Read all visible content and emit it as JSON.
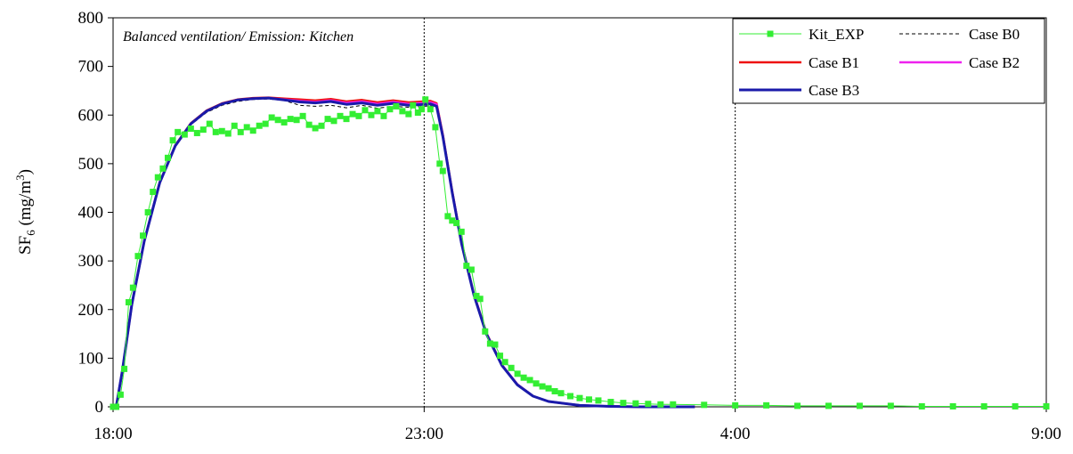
{
  "chart_data": {
    "type": "line",
    "annotation": "Balanced ventilation/ Emission: Kitchen",
    "ylabel": {
      "base": "SF",
      "sub": "6",
      "mid": " (mg/m",
      "sup": "3",
      "end": ")"
    },
    "xlabel": "",
    "xlim": [
      0,
      15
    ],
    "ylim": [
      0,
      800
    ],
    "x_tick_values": [
      0,
      5,
      10,
      15
    ],
    "x_tick_labels": [
      "18:00",
      "23:00",
      "4:00",
      "9:00"
    ],
    "y_ticks": [
      0,
      100,
      200,
      300,
      400,
      500,
      600,
      700,
      800
    ],
    "vertical_reference_lines": [
      5,
      10,
      15
    ],
    "x_unit_note": "hours after 18:00",
    "legend_position": "top-right",
    "series": [
      {
        "name": "Kit_EXP",
        "color": "#33ee33",
        "style": "line-with-square-markers",
        "points": [
          [
            -0.15,
            0
          ],
          [
            0.05,
            0
          ],
          [
            0.12,
            25
          ],
          [
            0.18,
            78
          ],
          [
            0.25,
            215
          ],
          [
            0.32,
            245
          ],
          [
            0.4,
            310
          ],
          [
            0.48,
            352
          ],
          [
            0.56,
            400
          ],
          [
            0.64,
            442
          ],
          [
            0.72,
            472
          ],
          [
            0.8,
            490
          ],
          [
            0.88,
            512
          ],
          [
            0.96,
            548
          ],
          [
            1.04,
            565
          ],
          [
            1.15,
            560
          ],
          [
            1.25,
            572
          ],
          [
            1.35,
            563
          ],
          [
            1.45,
            570
          ],
          [
            1.55,
            582
          ],
          [
            1.65,
            565
          ],
          [
            1.75,
            567
          ],
          [
            1.85,
            562
          ],
          [
            1.95,
            578
          ],
          [
            2.05,
            565
          ],
          [
            2.15,
            575
          ],
          [
            2.25,
            568
          ],
          [
            2.35,
            578
          ],
          [
            2.45,
            582
          ],
          [
            2.55,
            595
          ],
          [
            2.65,
            590
          ],
          [
            2.75,
            585
          ],
          [
            2.85,
            592
          ],
          [
            2.95,
            590
          ],
          [
            3.05,
            598
          ],
          [
            3.15,
            580
          ],
          [
            3.25,
            573
          ],
          [
            3.35,
            578
          ],
          [
            3.45,
            592
          ],
          [
            3.55,
            588
          ],
          [
            3.65,
            598
          ],
          [
            3.75,
            592
          ],
          [
            3.85,
            602
          ],
          [
            3.95,
            598
          ],
          [
            4.05,
            610
          ],
          [
            4.15,
            600
          ],
          [
            4.25,
            608
          ],
          [
            4.35,
            598
          ],
          [
            4.45,
            612
          ],
          [
            4.55,
            618
          ],
          [
            4.65,
            608
          ],
          [
            4.75,
            602
          ],
          [
            4.82,
            620
          ],
          [
            4.9,
            605
          ],
          [
            4.96,
            612
          ],
          [
            5.02,
            632
          ],
          [
            5.1,
            612
          ],
          [
            5.18,
            575
          ],
          [
            5.25,
            500
          ],
          [
            5.3,
            485
          ],
          [
            5.38,
            392
          ],
          [
            5.45,
            383
          ],
          [
            5.52,
            378
          ],
          [
            5.6,
            360
          ],
          [
            5.68,
            290
          ],
          [
            5.76,
            282
          ],
          [
            5.84,
            228
          ],
          [
            5.9,
            222
          ],
          [
            5.98,
            155
          ],
          [
            6.06,
            130
          ],
          [
            6.14,
            128
          ],
          [
            6.22,
            105
          ],
          [
            6.3,
            92
          ],
          [
            6.4,
            80
          ],
          [
            6.5,
            68
          ],
          [
            6.6,
            60
          ],
          [
            6.7,
            55
          ],
          [
            6.8,
            48
          ],
          [
            6.9,
            42
          ],
          [
            7.0,
            38
          ],
          [
            7.1,
            32
          ],
          [
            7.2,
            28
          ],
          [
            7.35,
            22
          ],
          [
            7.5,
            18
          ],
          [
            7.65,
            15
          ],
          [
            7.8,
            13
          ],
          [
            8.0,
            10
          ],
          [
            8.2,
            8
          ],
          [
            8.4,
            7
          ],
          [
            8.6,
            6
          ],
          [
            8.8,
            5
          ],
          [
            9.0,
            5
          ],
          [
            9.5,
            4
          ],
          [
            10.0,
            3
          ],
          [
            10.5,
            3
          ],
          [
            11.0,
            2
          ],
          [
            11.5,
            2
          ],
          [
            12.0,
            2
          ],
          [
            12.5,
            2
          ],
          [
            13.0,
            1
          ],
          [
            13.5,
            1
          ],
          [
            14.0,
            1
          ],
          [
            14.5,
            1
          ],
          [
            15.0,
            1
          ]
        ]
      },
      {
        "name": "Case B0",
        "color": "#000000",
        "style": "dashed",
        "points": [
          [
            0.05,
            0
          ],
          [
            0.15,
            75
          ],
          [
            0.3,
            210
          ],
          [
            0.5,
            340
          ],
          [
            0.75,
            460
          ],
          [
            1.0,
            535
          ],
          [
            1.25,
            580
          ],
          [
            1.5,
            605
          ],
          [
            1.75,
            620
          ],
          [
            2.0,
            628
          ],
          [
            2.25,
            632
          ],
          [
            2.5,
            633
          ],
          [
            2.75,
            630
          ],
          [
            3.0,
            620
          ],
          [
            3.25,
            618
          ],
          [
            3.5,
            620
          ],
          [
            3.75,
            615
          ],
          [
            4.0,
            620
          ],
          [
            4.25,
            614
          ],
          [
            4.5,
            618
          ],
          [
            4.75,
            616
          ],
          [
            5.0,
            618
          ],
          [
            5.1,
            619
          ],
          [
            5.2,
            615
          ],
          [
            5.3,
            555
          ],
          [
            5.45,
            440
          ],
          [
            5.6,
            335
          ],
          [
            5.8,
            230
          ],
          [
            6.0,
            150
          ],
          [
            6.25,
            85
          ],
          [
            6.5,
            45
          ],
          [
            6.75,
            22
          ],
          [
            7.0,
            11
          ],
          [
            7.5,
            3
          ],
          [
            8.0,
            1
          ],
          [
            8.5,
            0
          ],
          [
            9.35,
            0
          ]
        ]
      },
      {
        "name": "Case B1",
        "color": "#ee1111",
        "style": "solid",
        "points": [
          [
            0.05,
            0
          ],
          [
            0.15,
            75
          ],
          [
            0.3,
            210
          ],
          [
            0.5,
            340
          ],
          [
            0.75,
            462
          ],
          [
            1.0,
            538
          ],
          [
            1.25,
            583
          ],
          [
            1.5,
            609
          ],
          [
            1.75,
            624
          ],
          [
            2.0,
            632
          ],
          [
            2.25,
            635
          ],
          [
            2.5,
            636
          ],
          [
            2.75,
            634
          ],
          [
            3.0,
            632
          ],
          [
            3.25,
            630
          ],
          [
            3.5,
            633
          ],
          [
            3.75,
            628
          ],
          [
            4.0,
            631
          ],
          [
            4.25,
            626
          ],
          [
            4.5,
            630
          ],
          [
            4.75,
            626
          ],
          [
            5.0,
            628
          ],
          [
            5.1,
            629
          ],
          [
            5.2,
            624
          ],
          [
            5.3,
            560
          ],
          [
            5.45,
            444
          ],
          [
            5.6,
            338
          ],
          [
            5.8,
            232
          ],
          [
            6.0,
            152
          ],
          [
            6.25,
            86
          ],
          [
            6.5,
            46
          ],
          [
            6.75,
            22
          ],
          [
            7.0,
            11
          ],
          [
            7.5,
            3
          ],
          [
            8.0,
            1
          ],
          [
            8.5,
            0
          ],
          [
            9.35,
            0
          ]
        ]
      },
      {
        "name": "Case B2",
        "color": "#ee22ee",
        "style": "solid",
        "points": [
          [
            0.05,
            0
          ],
          [
            0.15,
            75
          ],
          [
            0.3,
            210
          ],
          [
            0.5,
            340
          ],
          [
            0.75,
            461
          ],
          [
            1.0,
            537
          ],
          [
            1.25,
            582
          ],
          [
            1.5,
            608
          ],
          [
            1.75,
            623
          ],
          [
            2.0,
            631
          ],
          [
            2.25,
            634
          ],
          [
            2.5,
            635
          ],
          [
            2.75,
            632
          ],
          [
            3.0,
            629
          ],
          [
            3.25,
            627
          ],
          [
            3.5,
            630
          ],
          [
            3.75,
            625
          ],
          [
            4.0,
            628
          ],
          [
            4.25,
            623
          ],
          [
            4.5,
            627
          ],
          [
            4.75,
            623
          ],
          [
            5.0,
            625
          ],
          [
            5.1,
            626
          ],
          [
            5.2,
            622
          ],
          [
            5.3,
            558
          ],
          [
            5.45,
            442
          ],
          [
            5.6,
            337
          ],
          [
            5.8,
            231
          ],
          [
            6.0,
            151
          ],
          [
            6.25,
            86
          ],
          [
            6.5,
            46
          ],
          [
            6.75,
            22
          ],
          [
            7.0,
            11
          ],
          [
            7.5,
            3
          ],
          [
            8.0,
            1
          ],
          [
            8.5,
            0
          ],
          [
            9.35,
            0
          ]
        ]
      },
      {
        "name": "Case B3",
        "color": "#1a1aaa",
        "style": "solid-thick",
        "points": [
          [
            0.05,
            0
          ],
          [
            0.15,
            75
          ],
          [
            0.3,
            210
          ],
          [
            0.5,
            340
          ],
          [
            0.75,
            461
          ],
          [
            1.0,
            537
          ],
          [
            1.25,
            582
          ],
          [
            1.5,
            608
          ],
          [
            1.75,
            623
          ],
          [
            2.0,
            631
          ],
          [
            2.25,
            634
          ],
          [
            2.5,
            635
          ],
          [
            2.75,
            631
          ],
          [
            3.0,
            627
          ],
          [
            3.25,
            625
          ],
          [
            3.5,
            628
          ],
          [
            3.75,
            622
          ],
          [
            4.0,
            625
          ],
          [
            4.25,
            620
          ],
          [
            4.5,
            624
          ],
          [
            4.75,
            620
          ],
          [
            5.0,
            622
          ],
          [
            5.1,
            623
          ],
          [
            5.2,
            618
          ],
          [
            5.3,
            556
          ],
          [
            5.45,
            441
          ],
          [
            5.6,
            336
          ],
          [
            5.8,
            230
          ],
          [
            6.0,
            150
          ],
          [
            6.25,
            85
          ],
          [
            6.5,
            45
          ],
          [
            6.75,
            22
          ],
          [
            7.0,
            11
          ],
          [
            7.5,
            3
          ],
          [
            8.0,
            1
          ],
          [
            8.5,
            0
          ],
          [
            9.35,
            0
          ]
        ]
      }
    ]
  }
}
